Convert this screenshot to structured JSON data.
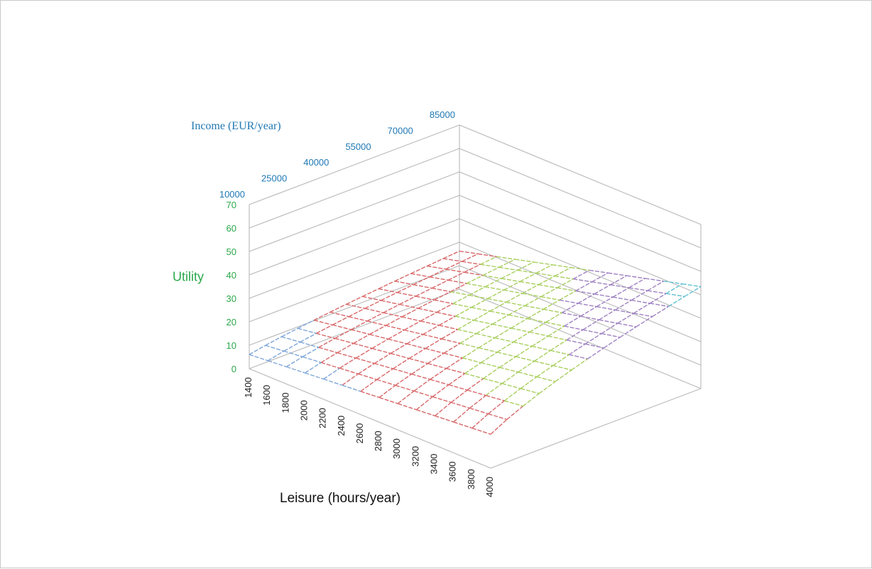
{
  "chart_data": {
    "type": "surface",
    "xlabel": "Leisure (hours/year)",
    "ylabel": "Income (EUR/year)",
    "zlabel": "Utility",
    "x_ticks": [
      "1400",
      "1600",
      "1800",
      "2000",
      "2200",
      "2400",
      "2600",
      "2800",
      "3000",
      "3200",
      "3400",
      "3600",
      "3800",
      "4000"
    ],
    "y_ticks": [
      "10000",
      "25000",
      "40000",
      "55000",
      "70000",
      "85000"
    ],
    "z_ticks": [
      "0",
      "10",
      "20",
      "30",
      "40",
      "50",
      "60",
      "70"
    ],
    "x_range": [
      1400,
      4000
    ],
    "y_range": [
      10000,
      85000
    ],
    "z_range": [
      0,
      70
    ],
    "band_colors": [
      "#7ea6d8",
      "#d9686a",
      "#a9cf5e",
      "#9f82c2",
      "#5fc1d1",
      "#f3a05a"
    ],
    "band_edges": [
      0,
      10,
      20,
      30,
      40,
      50,
      60
    ],
    "grid": true
  }
}
